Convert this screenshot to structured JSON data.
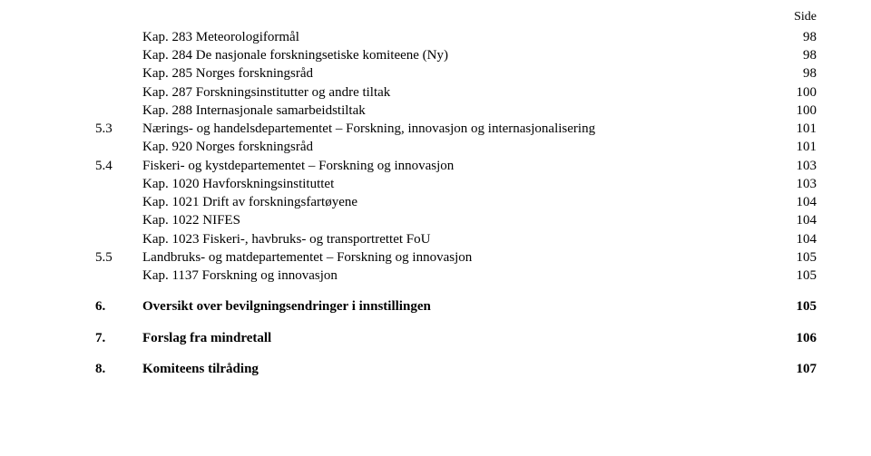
{
  "side_label": "Side",
  "toc": [
    {
      "level": 2,
      "num": "",
      "label": "Kap. 283 Meteorologiformål",
      "page": "98"
    },
    {
      "level": 2,
      "num": "",
      "label": "Kap. 284 De nasjonale forskningsetiske komiteene (Ny)",
      "page": "98"
    },
    {
      "level": 2,
      "num": "",
      "label": "Kap. 285 Norges forskningsråd",
      "page": "98"
    },
    {
      "level": 2,
      "num": "",
      "label": "Kap. 287 Forskningsinstitutter og andre tiltak",
      "page": "100"
    },
    {
      "level": 2,
      "num": "",
      "label": "Kap. 288 Internasjonale samarbeidstiltak",
      "page": "100"
    },
    {
      "level": 1,
      "num": "5.3",
      "label": "Nærings- og handelsdepartementet – Forskning, innovasjon og internasjonalisering",
      "page": "101"
    },
    {
      "level": 2,
      "num": "",
      "label": "Kap. 920 Norges forskningsråd",
      "page": "101"
    },
    {
      "level": 1,
      "num": "5.4",
      "label": "Fiskeri- og kystdepartementet – Forskning og innovasjon",
      "page": "103"
    },
    {
      "level": 2,
      "num": "",
      "label": "Kap. 1020 Havforskningsinstituttet",
      "page": "103"
    },
    {
      "level": 2,
      "num": "",
      "label": "Kap. 1021 Drift av forskningsfartøyene",
      "page": "104"
    },
    {
      "level": 2,
      "num": "",
      "label": "Kap. 1022 NIFES",
      "page": "104"
    },
    {
      "level": 2,
      "num": "",
      "label": "Kap. 1023 Fiskeri-, havbruks- og transportrettet FoU",
      "page": "104"
    },
    {
      "level": 1,
      "num": "5.5",
      "label": "Landbruks- og matdepartementet – Forskning og innovasjon",
      "page": "105"
    },
    {
      "level": 2,
      "num": "",
      "label": "Kap. 1137 Forskning og innovasjon",
      "page": "105"
    },
    {
      "level": 0,
      "num": "6.",
      "label": "Oversikt over bevilgningsendringer i innstillingen",
      "page": "105"
    },
    {
      "level": 0,
      "num": "7.",
      "label": "Forslag fra mindretall",
      "page": "106"
    },
    {
      "level": 0,
      "num": "8.",
      "label": "Komiteens tilråding",
      "page": "107"
    }
  ]
}
